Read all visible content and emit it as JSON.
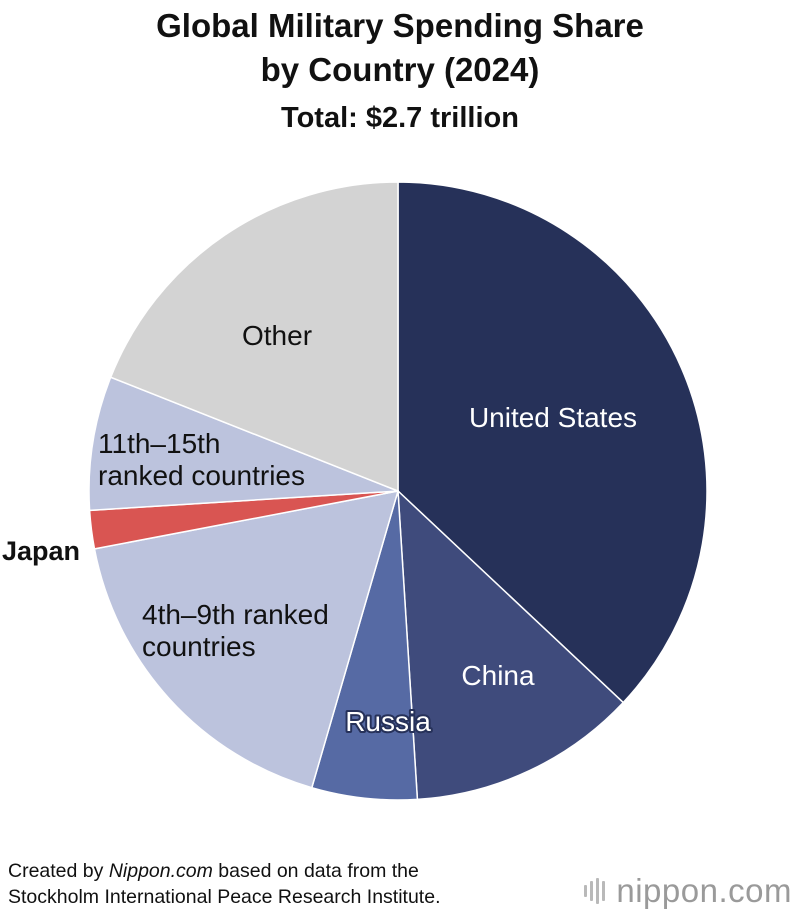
{
  "chart_data": {
    "type": "pie",
    "title": "Global Military Spending Share",
    "title_line2": "by Country (2024)",
    "subtitle": "Total: $2.7 trillion",
    "slices": [
      {
        "label_lines": [
          "United States"
        ],
        "value": 37,
        "color": "#263159",
        "label_color": "#ffffff"
      },
      {
        "label_lines": [
          "China"
        ],
        "value": 12,
        "color": "#3f4b7c",
        "label_color": "#ffffff"
      },
      {
        "label_lines": [
          "Russia"
        ],
        "value": 5.5,
        "color": "#566aa4",
        "label_color": "#ffffff"
      },
      {
        "label_lines": [
          "4th–9th ranked",
          "countries"
        ],
        "value": 17.5,
        "color": "#bcc3dd",
        "label_color": "#111111"
      },
      {
        "label_lines": [
          "Japan"
        ],
        "value": 2,
        "color": "#d95552",
        "label_color": "#111111"
      },
      {
        "label_lines": [
          "11th–15th",
          "ranked countries"
        ],
        "value": 7,
        "color": "#bcc3dd",
        "label_color": "#111111"
      },
      {
        "label_lines": [
          "Other"
        ],
        "value": 19,
        "color": "#d3d3d3",
        "label_color": "#111111"
      }
    ]
  },
  "footer": {
    "prefix": "Created by ",
    "source_site": "Nippon.com",
    "suffix": " based on data from the",
    "line2": "Stockholm International Peace Research Institute."
  },
  "logo": {
    "name": "nippon",
    "domain": ".com"
  }
}
